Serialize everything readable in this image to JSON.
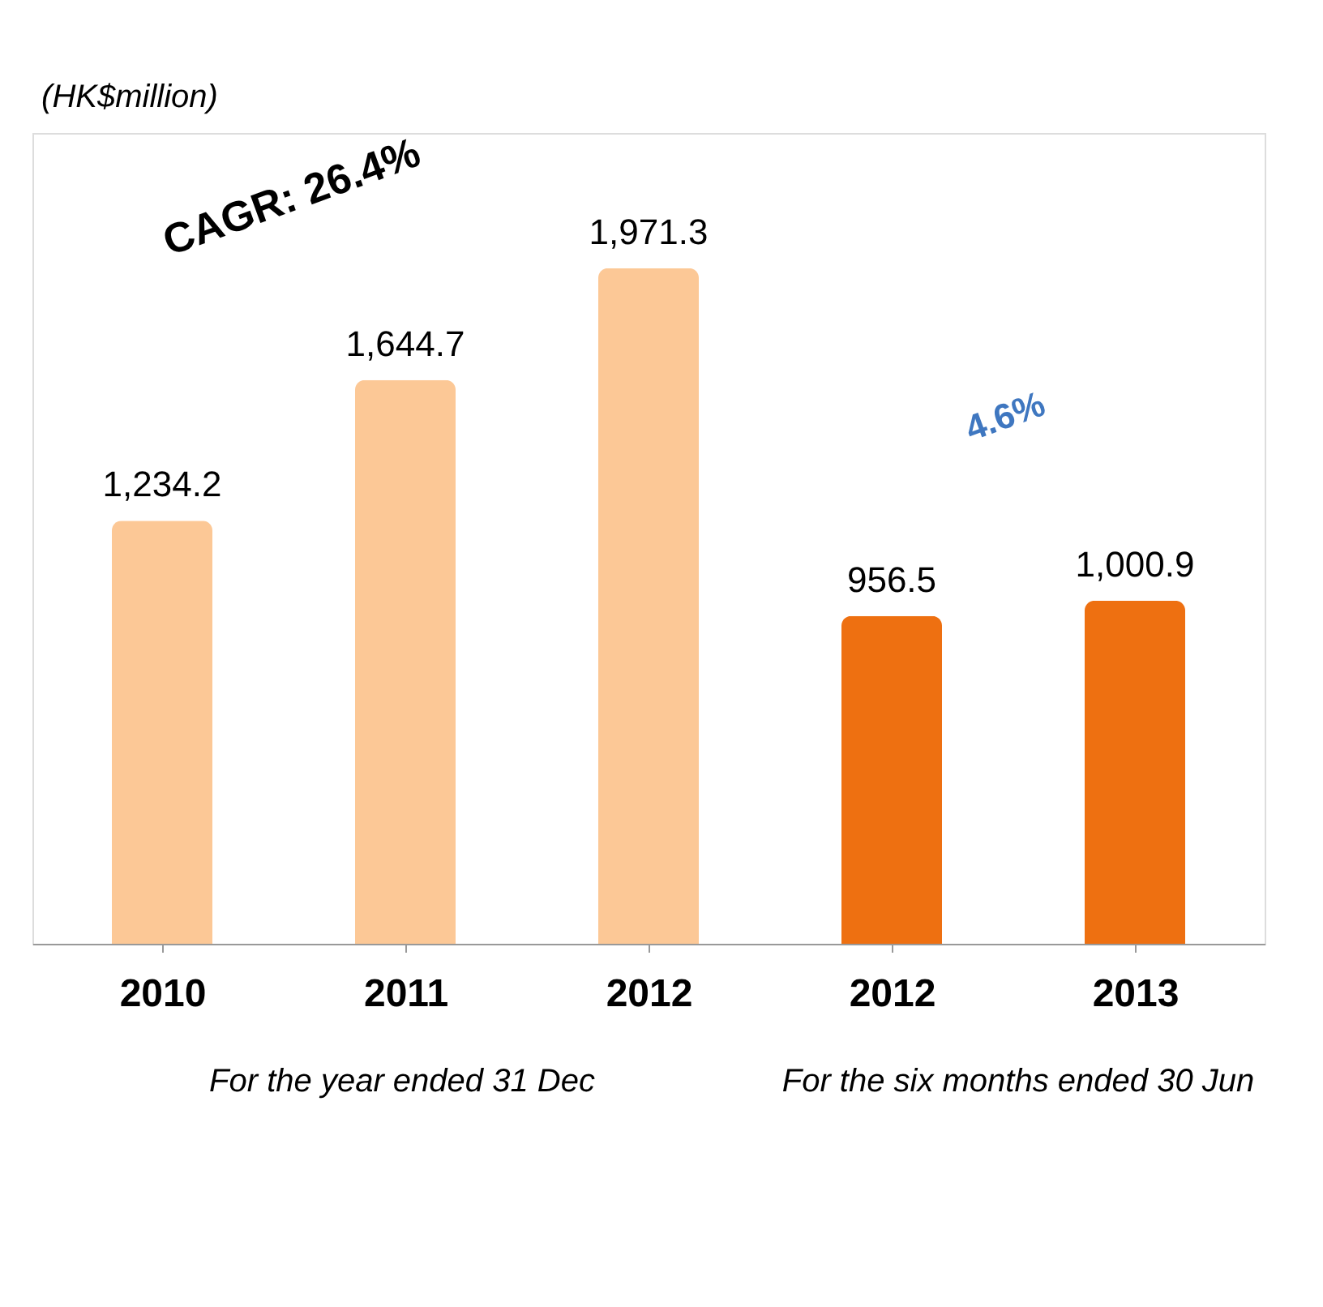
{
  "chart_data": {
    "type": "bar",
    "categories": [
      "2010",
      "2011",
      "2012",
      "2012",
      "2013"
    ],
    "values": [
      1234.2,
      1644.7,
      1971.3,
      956.5,
      1000.9
    ],
    "value_labels": [
      "1,234.2",
      "1,644.7",
      "1,971.3",
      "956.5",
      "1,000.9"
    ],
    "colors": [
      "#fcc896",
      "#fcc896",
      "#fcc896",
      "#ee7011",
      "#ee7011"
    ],
    "annotations": [
      "(HK$million)",
      "CAGR: 26.4%",
      "4.6%",
      "For the year ended 31 Dec",
      "For the six months ended 30 Jun"
    ]
  }
}
